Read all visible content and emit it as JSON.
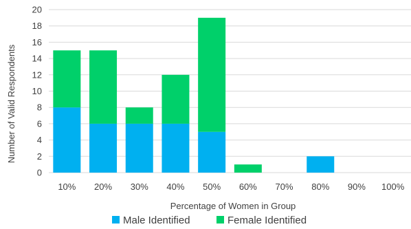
{
  "chart_data": {
    "type": "bar",
    "stacked": true,
    "categories": [
      "10%",
      "20%",
      "30%",
      "40%",
      "50%",
      "60%",
      "70%",
      "80%",
      "90%",
      "100%"
    ],
    "series": [
      {
        "name": "Male Identified",
        "color": "#00b0f0",
        "values": [
          8,
          6,
          6,
          6,
          5,
          0,
          0,
          2,
          0,
          0
        ]
      },
      {
        "name": "Female Identified",
        "color": "#00d06a",
        "values": [
          7,
          9,
          2,
          6,
          14,
          1,
          0,
          0,
          0,
          0
        ]
      }
    ],
    "title": "",
    "xlabel": "Percentage of Women in Group",
    "ylabel": "Number of Valid Respondents",
    "ylim": [
      0,
      20
    ],
    "yticks": [
      0,
      2,
      4,
      6,
      8,
      10,
      12,
      14,
      16,
      18,
      20
    ],
    "grid": true,
    "legend_position": "bottom"
  }
}
